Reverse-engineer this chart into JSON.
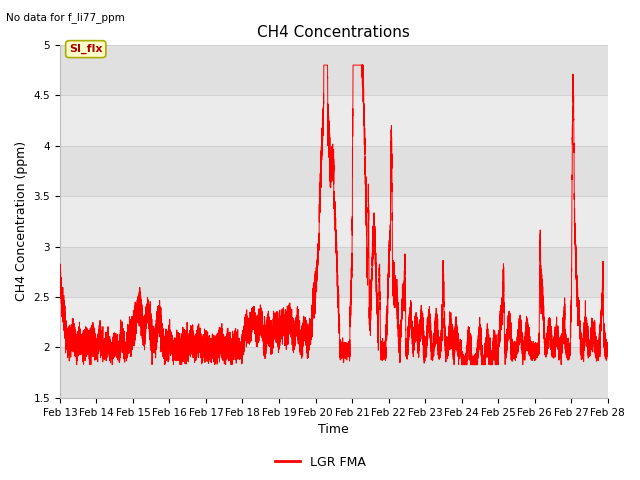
{
  "title": "CH4 Concentrations",
  "top_left_note": "No data for f_li77_ppm",
  "xlabel": "Time",
  "ylabel": "CH4 Concentration (ppm)",
  "ylim": [
    1.5,
    5.0
  ],
  "yticks": [
    1.5,
    2.0,
    2.5,
    3.0,
    3.5,
    4.0,
    4.5,
    5.0
  ],
  "x_tick_labels": [
    "Feb 13",
    "Feb 14",
    "Feb 15",
    "Feb 16",
    "Feb 17",
    "Feb 18",
    "Feb 19",
    "Feb 20",
    "Feb 21",
    "Feb 22",
    "Feb 23",
    "Feb 24",
    "Feb 25",
    "Feb 26",
    "Feb 27",
    "Feb 28"
  ],
  "line_color": "#ff0000",
  "line_width": 0.7,
  "legend_label": "LGR FMA",
  "legend_line_color": "#ff0000",
  "si_flx_label": "SI_flx",
  "si_flx_bg": "#ffffcc",
  "si_flx_border": "#aaaa00",
  "si_flx_text_color": "#aa0000",
  "grid_color": "#d0d0d0",
  "plot_bg_color": "#e8e8e8",
  "title_fontsize": 11,
  "axis_label_fontsize": 9,
  "tick_label_fontsize": 7.5,
  "note_fontsize": 7.5,
  "legend_fontsize": 9
}
